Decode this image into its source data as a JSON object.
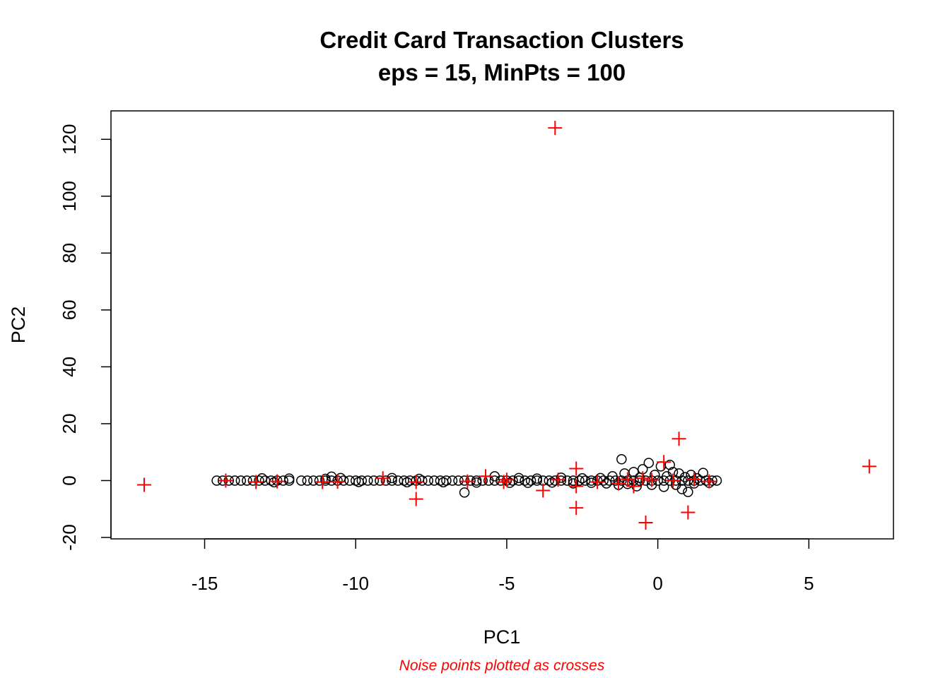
{
  "chart_data": {
    "type": "scatter",
    "title": "Credit Card Transaction Clusters",
    "subtitle": "eps = 15, MinPts = 100",
    "xlabel": "PC1",
    "ylabel": "PC2",
    "footnote": "Noise points plotted as crosses",
    "xlim": [
      -18.1,
      7.8
    ],
    "ylim": [
      -20.5,
      130
    ],
    "x_ticks": [
      {
        "value": -15,
        "label": "-15"
      },
      {
        "value": -10,
        "label": "-10"
      },
      {
        "value": -5,
        "label": "-5"
      },
      {
        "value": 0,
        "label": "0"
      },
      {
        "value": 5,
        "label": "5"
      }
    ],
    "y_ticks": [
      {
        "value": -20,
        "label": "-20"
      },
      {
        "value": 0,
        "label": "0"
      },
      {
        "value": 20,
        "label": "20"
      },
      {
        "value": 40,
        "label": "40"
      },
      {
        "value": 60,
        "label": "60"
      },
      {
        "value": 80,
        "label": "80"
      },
      {
        "value": 100,
        "label": "100"
      },
      {
        "value": 120,
        "label": "120"
      }
    ],
    "grid": false,
    "legend": "none",
    "colors": {
      "cluster": "#000000",
      "noise": "#ff0000",
      "footnote": "#ff0000"
    },
    "series": [
      {
        "marker": "circle",
        "points": [
          [
            -14.6,
            0
          ],
          [
            -14.4,
            0
          ],
          [
            -14.2,
            0
          ],
          [
            -14.0,
            0
          ],
          [
            -13.8,
            0
          ],
          [
            -13.6,
            0
          ],
          [
            -13.4,
            0
          ],
          [
            -13.2,
            0
          ],
          [
            -13.0,
            0
          ],
          [
            -12.8,
            0
          ],
          [
            -12.6,
            0
          ],
          [
            -12.4,
            0
          ],
          [
            -12.2,
            0
          ],
          [
            -11.8,
            0
          ],
          [
            -11.6,
            0
          ],
          [
            -11.4,
            0
          ],
          [
            -11.2,
            0
          ],
          [
            -11.0,
            0
          ],
          [
            -10.8,
            0
          ],
          [
            -10.6,
            0
          ],
          [
            -10.4,
            0
          ],
          [
            -10.2,
            0
          ],
          [
            -10.0,
            0
          ],
          [
            -9.8,
            0
          ],
          [
            -9.6,
            0
          ],
          [
            -9.4,
            0
          ],
          [
            -9.2,
            0
          ],
          [
            -9.0,
            0
          ],
          [
            -8.8,
            0
          ],
          [
            -8.6,
            0
          ],
          [
            -8.4,
            0
          ],
          [
            -8.2,
            0
          ],
          [
            -8.0,
            0
          ],
          [
            -7.8,
            0
          ],
          [
            -7.6,
            0
          ],
          [
            -7.4,
            0
          ],
          [
            -7.2,
            0
          ],
          [
            -7.0,
            0
          ],
          [
            -6.8,
            0
          ],
          [
            -6.6,
            0
          ],
          [
            -6.4,
            0
          ],
          [
            -6.2,
            0
          ],
          [
            -6.0,
            0
          ],
          [
            -5.8,
            0
          ],
          [
            -5.6,
            0
          ],
          [
            -5.4,
            0
          ],
          [
            -5.2,
            0
          ],
          [
            -5.0,
            0
          ],
          [
            -4.8,
            0
          ],
          [
            -4.6,
            0
          ],
          [
            -4.4,
            0
          ],
          [
            -4.2,
            0
          ],
          [
            -4.0,
            0
          ],
          [
            -3.8,
            0
          ],
          [
            -3.6,
            0
          ],
          [
            -3.4,
            0
          ],
          [
            -3.2,
            0
          ],
          [
            -3.0,
            0
          ],
          [
            -2.8,
            0
          ],
          [
            -2.6,
            0
          ],
          [
            -2.4,
            0
          ],
          [
            -2.2,
            0
          ],
          [
            -2.0,
            0
          ],
          [
            -1.8,
            0
          ],
          [
            -1.6,
            0
          ],
          [
            -1.4,
            0
          ],
          [
            -1.2,
            0
          ],
          [
            -1.0,
            0
          ],
          [
            -0.8,
            0
          ],
          [
            -0.6,
            0
          ],
          [
            -0.4,
            0
          ],
          [
            -0.2,
            0
          ],
          [
            0.0,
            0
          ],
          [
            0.2,
            0
          ],
          [
            0.4,
            0
          ],
          [
            0.6,
            0
          ],
          [
            0.8,
            0
          ],
          [
            1.0,
            0
          ],
          [
            1.2,
            0
          ],
          [
            1.4,
            0
          ],
          [
            1.6,
            0
          ],
          [
            1.8,
            0
          ],
          [
            1.95,
            0
          ],
          [
            -13.1,
            0.8
          ],
          [
            -12.7,
            -0.6
          ],
          [
            -12.2,
            0.7
          ],
          [
            -11.0,
            0.6
          ],
          [
            -10.8,
            1.4
          ],
          [
            -10.5,
            0.9
          ],
          [
            -9.9,
            -0.5
          ],
          [
            -8.8,
            0.9
          ],
          [
            -8.3,
            -0.6
          ],
          [
            -7.9,
            0.6
          ],
          [
            -7.1,
            -0.6
          ],
          [
            -6.4,
            -4.2
          ],
          [
            -6.0,
            -0.7
          ],
          [
            -5.4,
            1.5
          ],
          [
            -4.9,
            -0.8
          ],
          [
            -4.6,
            0.9
          ],
          [
            -4.3,
            -0.8
          ],
          [
            -4.0,
            0.7
          ],
          [
            -3.5,
            -0.7
          ],
          [
            -3.2,
            1.0
          ],
          [
            -2.8,
            -1.0
          ],
          [
            -2.5,
            0.8
          ],
          [
            -2.2,
            -0.8
          ],
          [
            -1.9,
            0.9
          ],
          [
            -1.7,
            -1.0
          ],
          [
            -1.5,
            1.5
          ],
          [
            -1.3,
            -1.5
          ],
          [
            -1.2,
            7.5
          ],
          [
            -1.1,
            2.5
          ],
          [
            -1.0,
            -1.2
          ],
          [
            -0.8,
            3.0
          ],
          [
            -0.7,
            -2.0
          ],
          [
            -0.6,
            1.0
          ],
          [
            -0.5,
            4.0
          ],
          [
            -0.3,
            6.2
          ],
          [
            -0.2,
            -1.5
          ],
          [
            -0.1,
            2.0
          ],
          [
            0.1,
            5.0
          ],
          [
            0.2,
            -2.2
          ],
          [
            0.3,
            1.5
          ],
          [
            0.4,
            5.5
          ],
          [
            0.5,
            3.0
          ],
          [
            0.6,
            -1.5
          ],
          [
            0.7,
            2.5
          ],
          [
            0.8,
            -3.0
          ],
          [
            0.9,
            1.2
          ],
          [
            1.0,
            -4.0
          ],
          [
            1.1,
            2.0
          ],
          [
            1.2,
            -1.0
          ],
          [
            1.3,
            0.8
          ],
          [
            1.5,
            2.7
          ],
          [
            1.7,
            -0.8
          ]
        ]
      },
      {
        "marker": "cross",
        "points": [
          [
            -3.4,
            124
          ],
          [
            -17.0,
            -1.5
          ],
          [
            -14.3,
            0
          ],
          [
            -13.3,
            -0.5
          ],
          [
            -12.6,
            -0.3
          ],
          [
            -11.1,
            -0.5
          ],
          [
            -10.6,
            -0.4
          ],
          [
            -9.1,
            0.8
          ],
          [
            -8.0,
            -6.5
          ],
          [
            -8.0,
            -0.5
          ],
          [
            -6.3,
            -0.3
          ],
          [
            -5.7,
            1.5
          ],
          [
            -5.1,
            -0.5
          ],
          [
            -5.0,
            0.3
          ],
          [
            -3.8,
            -3.5
          ],
          [
            -3.3,
            0.3
          ],
          [
            -2.7,
            4.2
          ],
          [
            -2.7,
            -9.6
          ],
          [
            -2.7,
            -2.0
          ],
          [
            -2.0,
            -0.5
          ],
          [
            -1.3,
            -1.0
          ],
          [
            -1.0,
            0.5
          ],
          [
            -0.8,
            -2.0
          ],
          [
            -0.5,
            0.8
          ],
          [
            -0.4,
            -14.8
          ],
          [
            -0.2,
            0.2
          ],
          [
            0.2,
            6.5
          ],
          [
            0.5,
            0.0
          ],
          [
            0.7,
            14.7
          ],
          [
            1.0,
            -11.2
          ],
          [
            1.2,
            0.4
          ],
          [
            1.7,
            -0.3
          ],
          [
            7.0,
            5.0
          ]
        ]
      }
    ]
  }
}
